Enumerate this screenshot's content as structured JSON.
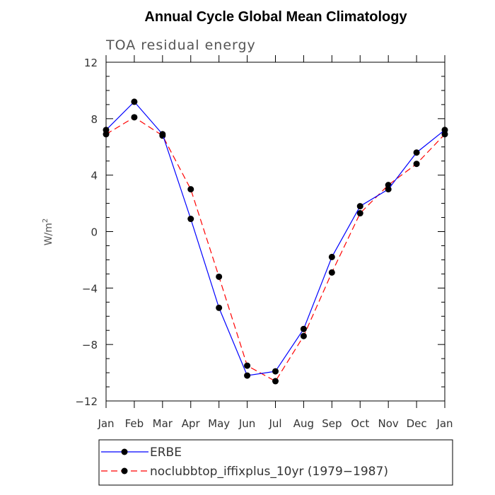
{
  "chart_data": {
    "type": "line",
    "title": "Annual Cycle Global Mean Climatology",
    "subtitle": "TOA residual energy",
    "ylabel": "W/m",
    "ylabel_superscript": "2",
    "xlabel": "",
    "categories": [
      "Jan",
      "Feb",
      "Mar",
      "Apr",
      "May",
      "Jun",
      "Jul",
      "Aug",
      "Sep",
      "Oct",
      "Nov",
      "Dec",
      "Jan"
    ],
    "ylim": [
      -12,
      12
    ],
    "yticks": [
      12,
      8,
      4,
      0,
      -4,
      -8,
      -12
    ],
    "ytick_labels": [
      "12",
      "8",
      "4",
      "0",
      "−4",
      "−8",
      "−12"
    ],
    "grid": false,
    "legend_position": "bottom",
    "series": [
      {
        "name": "ERBE",
        "color": "#0000ff",
        "line_style": "solid",
        "marker": "filled-circle",
        "values": [
          7.2,
          9.2,
          6.9,
          0.9,
          -5.4,
          -10.2,
          -9.9,
          -6.9,
          -1.8,
          1.8,
          3.0,
          5.6,
          7.2
        ]
      },
      {
        "name": "noclubbtop_iffixplus_10yr (1979−1987)",
        "color": "#ff0000",
        "line_style": "dashed",
        "marker": "filled-circle",
        "values": [
          6.9,
          8.1,
          6.8,
          3.0,
          -3.2,
          -9.5,
          -10.6,
          -7.4,
          -2.9,
          1.3,
          3.3,
          4.8,
          6.9
        ]
      }
    ]
  }
}
